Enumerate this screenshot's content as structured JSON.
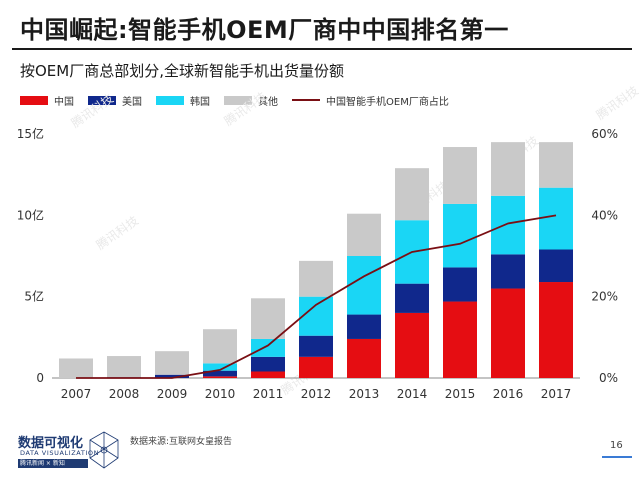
{
  "title": "中国崛起:智能手机OEM厂商中中国排名第一",
  "subtitle": "按OEM厂商总部划分,全球新智能手机出货量份额",
  "source": "数据来源:互联网女皇报告",
  "page_number": "16",
  "logo": {
    "title": "数据可视化",
    "subtitle": "DATA VISUALIZATION",
    "brand": "腾讯新闻 × 新知"
  },
  "watermark": "腾讯科技",
  "colors": {
    "china": "#e50d12",
    "usa": "#10288c",
    "korea": "#1ad6f5",
    "other": "#c9c9c9",
    "line": "#7a0f14",
    "axis": "#666666"
  },
  "chart_data": {
    "type": "bar",
    "stacked": true,
    "categories": [
      "2007",
      "2008",
      "2009",
      "2010",
      "2011",
      "2012",
      "2013",
      "2014",
      "2015",
      "2016",
      "2017"
    ],
    "series": [
      {
        "name": "中国",
        "color": "#e50d12",
        "values": [
          0.0,
          0.0,
          0.0,
          0.1,
          0.4,
          1.3,
          2.4,
          4.0,
          4.7,
          5.5,
          5.9
        ]
      },
      {
        "name": "美国",
        "color": "#10288c",
        "values": [
          0.0,
          0.05,
          0.2,
          0.35,
          0.9,
          1.3,
          1.5,
          1.8,
          2.1,
          2.1,
          2.0
        ]
      },
      {
        "name": "韩国",
        "color": "#1ad6f5",
        "values": [
          0.0,
          0.0,
          0.0,
          0.45,
          1.1,
          2.4,
          3.6,
          3.9,
          3.9,
          3.6,
          3.8
        ]
      },
      {
        "name": "其他",
        "color": "#c9c9c9",
        "values": [
          1.2,
          1.3,
          1.45,
          2.1,
          2.5,
          2.2,
          2.6,
          3.2,
          3.5,
          3.3,
          2.8
        ]
      }
    ],
    "line_series": {
      "name": "中国智能手机OEM厂商占比",
      "color": "#7a0f14",
      "values": [
        0,
        0,
        0,
        2,
        8,
        18,
        25,
        31,
        33,
        38,
        40
      ]
    },
    "left_axis": {
      "ticks": [
        "0",
        "5亿",
        "10亿",
        "15亿"
      ],
      "ylim": [
        0,
        15
      ]
    },
    "right_axis": {
      "ticks": [
        "0%",
        "20%",
        "40%",
        "60%"
      ],
      "ylim": [
        0,
        60
      ]
    },
    "grid": false,
    "legend": "top"
  }
}
